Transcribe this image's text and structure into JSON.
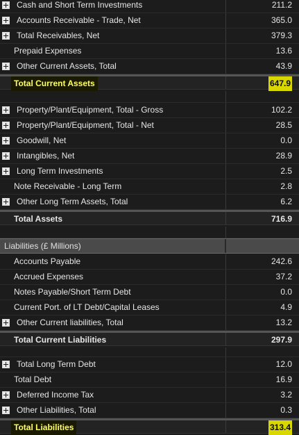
{
  "assets": [
    {
      "label": "Cash and Short Term Investments",
      "value": "211.2",
      "expandable": true
    },
    {
      "label": "Accounts Receivable - Trade, Net",
      "value": "365.0",
      "expandable": true
    },
    {
      "label": "Total Receivables, Net",
      "value": "379.3",
      "expandable": true
    },
    {
      "label": "Prepaid Expenses",
      "value": "13.6",
      "expandable": false
    },
    {
      "label": "Other Current Assets, Total",
      "value": "43.9",
      "expandable": true
    }
  ],
  "total_current_assets": {
    "label": "Total Current Assets",
    "value": "647.9"
  },
  "long_term_assets": [
    {
      "label": "Property/Plant/Equipment, Total - Gross",
      "value": "102.2",
      "expandable": true
    },
    {
      "label": "Property/Plant/Equipment, Total - Net",
      "value": "28.5",
      "expandable": true
    },
    {
      "label": "Goodwill, Net",
      "value": "0.0",
      "expandable": true
    },
    {
      "label": "Intangibles, Net",
      "value": "28.9",
      "expandable": true
    },
    {
      "label": "Long Term Investments",
      "value": "2.5",
      "expandable": true
    },
    {
      "label": "Note Receivable - Long Term",
      "value": "2.8",
      "expandable": false
    },
    {
      "label": "Other Long Term Assets, Total",
      "value": "6.2",
      "expandable": true
    }
  ],
  "total_assets": {
    "label": "Total Assets",
    "value": "716.9"
  },
  "liabilities_header": "Liabilities (£ Millions)",
  "current_liabilities": [
    {
      "label": "Accounts Payable",
      "value": "242.6",
      "expandable": false
    },
    {
      "label": "Accrued Expenses",
      "value": "37.2",
      "expandable": false
    },
    {
      "label": "Notes Payable/Short Term Debt",
      "value": "0.0",
      "expandable": false
    },
    {
      "label": "Current Port. of LT Debt/Capital Leases",
      "value": "4.9",
      "expandable": false
    },
    {
      "label": "Other Current liabilities, Total",
      "value": "13.2",
      "expandable": true
    }
  ],
  "total_current_liabilities": {
    "label": "Total Current Liabilities",
    "value": "297.9"
  },
  "long_term_liabilities": [
    {
      "label": "Total Long Term Debt",
      "value": "12.0",
      "expandable": true
    },
    {
      "label": "Total Debt",
      "value": "16.9",
      "expandable": false
    },
    {
      "label": "Deferred Income Tax",
      "value": "3.2",
      "expandable": true
    },
    {
      "label": "Other Liabilities, Total",
      "value": "0.3",
      "expandable": true
    }
  ],
  "total_liabilities": {
    "label": "Total Liabilities",
    "value": "313.4"
  }
}
